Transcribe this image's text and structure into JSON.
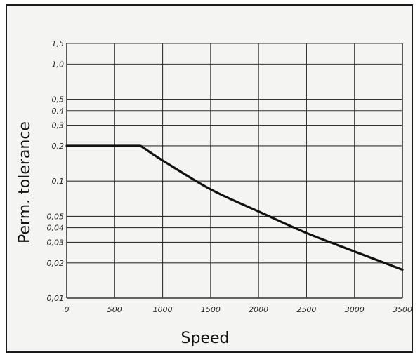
{
  "chart_data": {
    "type": "line",
    "title": "",
    "xlabel": "Speed",
    "ylabel": "Perm. tolerance",
    "xlim": [
      0,
      3500
    ],
    "ylim": [
      0.01,
      1.5
    ],
    "yscale": "log",
    "grid": true,
    "x_ticks": [
      0,
      500,
      1000,
      1500,
      2000,
      2500,
      3000,
      3500
    ],
    "x_tick_labels": [
      "0",
      "500",
      "1000",
      "1500",
      "2000",
      "2500",
      "3000",
      "3500"
    ],
    "y_ticks": [
      0.01,
      0.02,
      0.03,
      0.04,
      0.05,
      0.1,
      0.2,
      0.3,
      0.4,
      0.5,
      1.0,
      1.5
    ],
    "y_tick_labels": [
      "0,01",
      "0,02",
      "0,03",
      "0,04",
      "0,05",
      "0,1",
      "0,2",
      "0,3",
      "0,4",
      "0,5",
      "1,0",
      "1,5"
    ],
    "series": [
      {
        "x": [
          0,
          770,
          1000,
          1500,
          2000,
          2500,
          3000,
          3500
        ],
        "values": [
          0.2,
          0.2,
          0.15,
          0.085,
          0.055,
          0.036,
          0.025,
          0.0175
        ],
        "color": "#111111"
      }
    ]
  }
}
